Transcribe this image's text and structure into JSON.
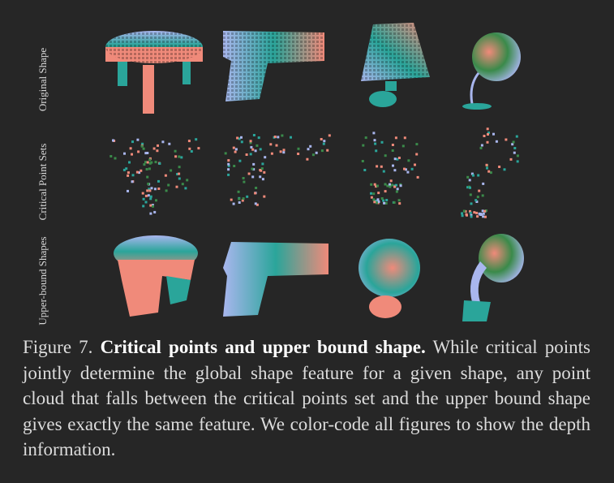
{
  "figure": {
    "rows": [
      {
        "label": "Original Shape"
      },
      {
        "label": "Critical Point Sets"
      },
      {
        "label": "Upper-bound Shapes"
      }
    ],
    "columns": [
      "table",
      "gun",
      "lamp",
      "lamp"
    ],
    "colors": {
      "background": "#262626",
      "salmon": "#f08a7a",
      "teal": "#2aa59a",
      "lavender": "#a9b6ee",
      "green": "#3a8a4a"
    }
  },
  "caption": {
    "label": "Figure 7.",
    "title": "Critical points and upper bound shape.",
    "body": "While critical points jointly determine the global shape feature for a given shape, any point cloud that falls between the critical points set and the upper bound shape gives exactly the same feature. We color-code all figures to show the depth information."
  }
}
